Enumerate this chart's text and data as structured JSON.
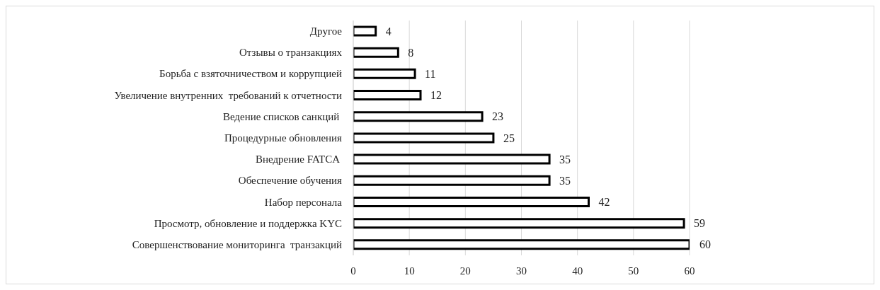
{
  "chart_data": {
    "type": "bar",
    "orientation": "horizontal",
    "categories": [
      "Другое",
      "Отзывы о транзакциях",
      "Борьба с взяточничеством и коррупцией",
      "Увеличение внутренних  требований к отчетности",
      "Ведение списков санкций ",
      "Процедурные обновления",
      "Внедрение FATCA ",
      "Обеспечение обучения",
      "Набор персонала",
      "Просмотр, обновление и поддержка KYC",
      "Совершенствование мониторинга  транзакций"
    ],
    "values": [
      4,
      8,
      11,
      12,
      23,
      25,
      35,
      35,
      42,
      59,
      60
    ],
    "color": "#ffffff",
    "xlim": [
      0,
      60
    ],
    "xticks": [
      0,
      10,
      20,
      30,
      40,
      50,
      60
    ],
    "grid": "x",
    "data_labels": true
  }
}
